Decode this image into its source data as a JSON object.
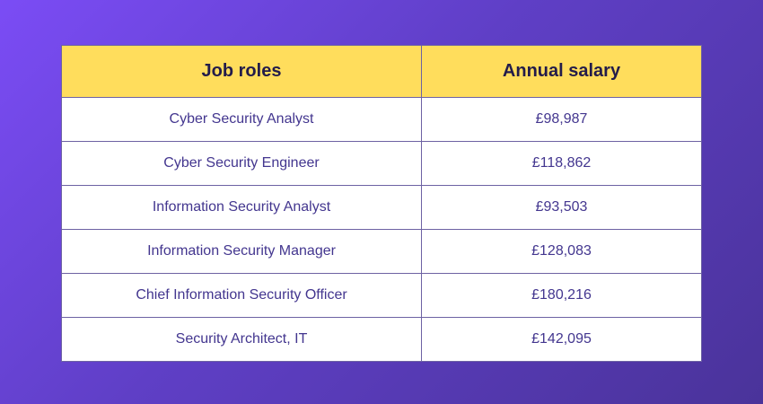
{
  "table": {
    "headers": [
      "Job roles",
      "Annual salary"
    ],
    "rows": [
      {
        "role": "Cyber Security Analyst",
        "salary": "£98,987"
      },
      {
        "role": "Cyber Security Engineer",
        "salary": "£118,862"
      },
      {
        "role": "Information Security Analyst",
        "salary": "£93,503"
      },
      {
        "role": "Information Security Manager",
        "salary": "£128,083"
      },
      {
        "role": "Chief Information Security Officer",
        "salary": "£180,216"
      },
      {
        "role": "Security Architect, IT",
        "salary": "£142,095"
      }
    ]
  },
  "colors": {
    "header_bg": "#ffdd5c",
    "header_text": "#231c4a",
    "cell_text": "#43368f",
    "border": "#6d62a3",
    "bg_gradient_start": "#7b4cf5",
    "bg_gradient_end": "#4a339a"
  }
}
